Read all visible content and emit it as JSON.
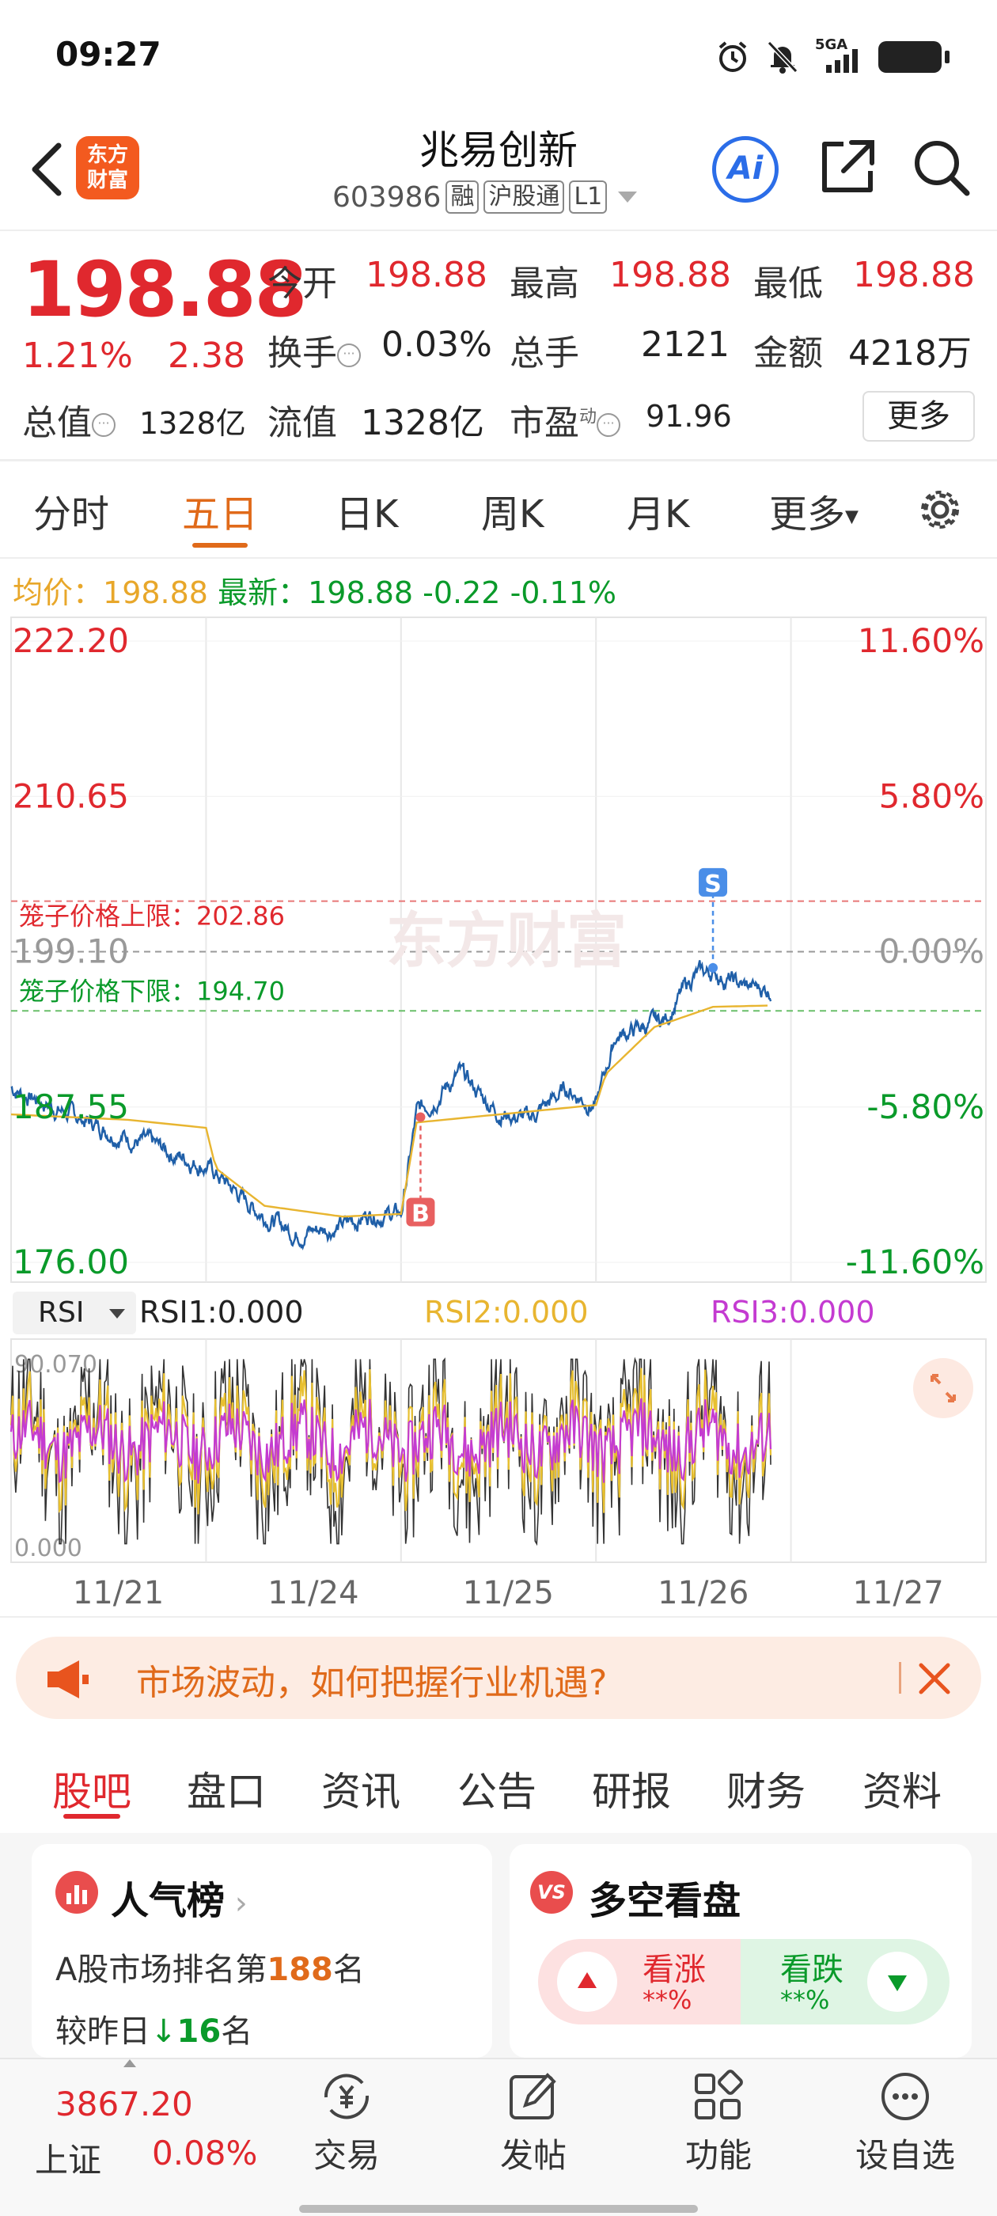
{
  "status_bar": {
    "time": "09:27",
    "network": "5GA"
  },
  "header": {
    "logo_text_line1": "东方",
    "logo_text_line2": "财富",
    "stock_name": "兆易创新",
    "stock_code": "603986",
    "tags": [
      "融",
      "沪股通",
      "L1"
    ],
    "ai_label": "Ai"
  },
  "quote": {
    "price": "198.88",
    "change_pct": "1.21%",
    "change_amt": "2.38",
    "open_label": "今开",
    "open": "198.88",
    "high_label": "最高",
    "high": "198.88",
    "low_label": "最低",
    "low": "198.88",
    "turnover_label": "换手",
    "turnover": "0.03%",
    "volume_label": "总手",
    "volume": "2121",
    "amount_label": "金额",
    "amount": "4218万",
    "mktcap_label": "总值",
    "mktcap": "1328亿",
    "float_label": "流值",
    "float": "1328亿",
    "pe_label": "市盈",
    "pe_sup": "动",
    "pe": "91.96",
    "more_label": "更多"
  },
  "chart_tabs": [
    "分时",
    "五日",
    "日K",
    "周K",
    "月K",
    "更多"
  ],
  "active_tab": "五日",
  "info_line": {
    "avg_label": "均价：",
    "avg": "198.88",
    "latest_label": "最新：",
    "latest": "198.88",
    "chg": "-0.22",
    "chg_pct": "-0.11%"
  },
  "colors": {
    "up": "#e0282e",
    "down": "#0a9a2a",
    "price_line": "#1f5fa8",
    "avg_line": "#e8b530",
    "accent": "#e06a1a"
  },
  "chart_data": {
    "type": "line",
    "y_ticks_left": [
      "222.20",
      "210.65",
      "199.10",
      "187.55",
      "176.00"
    ],
    "y_ticks_right": [
      "11.60%",
      "5.80%",
      "0.00%",
      "-5.80%",
      "-11.60%"
    ],
    "ylim": [
      176.0,
      222.2
    ],
    "prev_close": 199.1,
    "x_labels": [
      "11/21",
      "11/24",
      "11/25",
      "11/26",
      "11/27"
    ],
    "cage_upper_label": "笼子价格上限：",
    "cage_upper": 202.86,
    "cage_lower_label": "笼子价格下限：",
    "cage_lower": 194.7,
    "watermark": "东方财富",
    "signals": [
      {
        "label": "B",
        "day": 2,
        "frac": 0.1,
        "price": 186.8
      },
      {
        "label": "S",
        "day": 3,
        "frac": 0.6,
        "price": 197.9
      }
    ],
    "price_key": [
      [
        0,
        189.0
      ],
      [
        0.3,
        187.0
      ],
      [
        0.6,
        185.3
      ],
      [
        1.0,
        183.2
      ],
      [
        1.25,
        180.0
      ],
      [
        1.45,
        178.2
      ],
      [
        1.7,
        178.7
      ],
      [
        1.85,
        179.7
      ],
      [
        2.0,
        179.5
      ],
      [
        2.08,
        187.0
      ],
      [
        2.3,
        190.0
      ],
      [
        2.5,
        187.2
      ],
      [
        2.65,
        186.6
      ],
      [
        2.85,
        188.9
      ],
      [
        3.0,
        187.6
      ],
      [
        3.1,
        192.8
      ],
      [
        3.35,
        194.0
      ],
      [
        3.5,
        197.3
      ],
      [
        3.6,
        197.6
      ],
      [
        3.75,
        196.5
      ],
      [
        3.9,
        196.3
      ]
    ],
    "avg_key": [
      [
        0,
        187.0
      ],
      [
        0.6,
        186.6
      ],
      [
        1.0,
        186.0
      ],
      [
        1.05,
        183.0
      ],
      [
        1.3,
        180.2
      ],
      [
        1.7,
        179.4
      ],
      [
        2.0,
        179.6
      ],
      [
        2.08,
        186.4
      ],
      [
        3.0,
        187.7
      ],
      [
        3.05,
        190.0
      ],
      [
        3.3,
        193.5
      ],
      [
        3.6,
        195.0
      ],
      [
        3.9,
        195.1
      ]
    ]
  },
  "rsi": {
    "select": "RSI",
    "rsi1_label": "RSI1:",
    "rsi1": "0.000",
    "rsi2_label": "RSI2:",
    "rsi2": "0.000",
    "rsi3_label": "RSI3:",
    "rsi3": "0.000",
    "max": "90.070",
    "min": "0.000"
  },
  "banner": {
    "text": "市场波动，如何把握行业机遇?"
  },
  "sub_tabs": [
    "股吧",
    "盘口",
    "资讯",
    "公告",
    "研报",
    "财务",
    "资料"
  ],
  "active_sub_tab": "股吧",
  "cards": {
    "rank_title": "人气榜",
    "rank_line1_prefix": "A股市场排名第",
    "rank_num": "188",
    "rank_line1_suffix": "名",
    "rank_line2_prefix": "较昨日",
    "rank_delta": "16",
    "rank_line2_suffix": "名",
    "vs_title": "多空看盘",
    "bull_label": "看涨",
    "bull_pct": "**%",
    "bear_label": "看跌",
    "bear_pct": "**%"
  },
  "bottom_nav": {
    "index_value": "3867.20",
    "index_name": "上证",
    "index_change": "0.08%",
    "items": [
      "交易",
      "发帖",
      "功能",
      "设自选"
    ]
  }
}
